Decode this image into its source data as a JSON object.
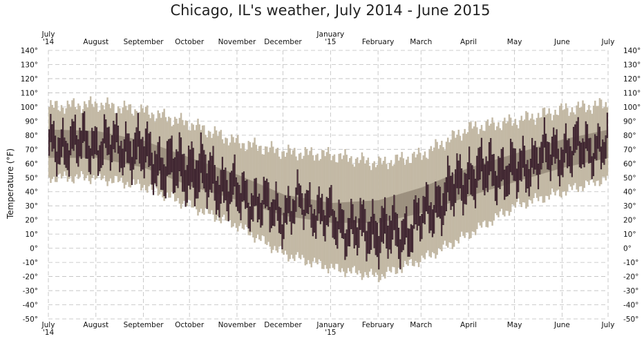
{
  "chart_data": {
    "type": "bar",
    "title": "Chicago, IL's weather, July 2014 - June 2015",
    "ylabel": "Temperature (°F)",
    "xlabel": "",
    "ylim": [
      -50,
      140
    ],
    "y_ticks": [
      140,
      130,
      120,
      110,
      100,
      90,
      80,
      70,
      60,
      50,
      40,
      30,
      20,
      10,
      0,
      -10,
      -20,
      -30,
      -40,
      -50
    ],
    "y_tick_suffix": "°",
    "grid": true,
    "x_ticks": [
      {
        "day": 0,
        "line1": "July",
        "line2": "'14"
      },
      {
        "day": 31,
        "line1": "August",
        "line2": ""
      },
      {
        "day": 62,
        "line1": "September",
        "line2": ""
      },
      {
        "day": 92,
        "line1": "October",
        "line2": ""
      },
      {
        "day": 123,
        "line1": "November",
        "line2": ""
      },
      {
        "day": 153,
        "line1": "December",
        "line2": ""
      },
      {
        "day": 184,
        "line1": "January",
        "line2": "'15"
      },
      {
        "day": 215,
        "line1": "February",
        "line2": ""
      },
      {
        "day": 243,
        "line1": "March",
        "line2": ""
      },
      {
        "day": 274,
        "line1": "April",
        "line2": ""
      },
      {
        "day": 304,
        "line1": "May",
        "line2": ""
      },
      {
        "day": 335,
        "line1": "June",
        "line2": ""
      },
      {
        "day": 365,
        "line1": "July",
        "line2": ""
      }
    ],
    "colors": {
      "record_band": "#c3b9a5",
      "normal_band": "#9c907f",
      "daily_bar": "#5b3444",
      "daily_bar_outline": "#2a1c22",
      "record_marker": "#7aaed3"
    },
    "series": [
      {
        "key": "record_range",
        "anchors": [
          {
            "day": 0,
            "low": 50,
            "high": 100
          },
          {
            "day": 31,
            "low": 50,
            "high": 102
          },
          {
            "day": 62,
            "low": 44,
            "high": 97
          },
          {
            "day": 92,
            "low": 30,
            "high": 88
          },
          {
            "day": 123,
            "low": 16,
            "high": 75
          },
          {
            "day": 153,
            "low": -4,
            "high": 68
          },
          {
            "day": 184,
            "low": -14,
            "high": 66
          },
          {
            "day": 215,
            "low": -20,
            "high": 60
          },
          {
            "day": 243,
            "low": -8,
            "high": 66
          },
          {
            "day": 274,
            "low": 10,
            "high": 85
          },
          {
            "day": 304,
            "low": 30,
            "high": 90
          },
          {
            "day": 335,
            "low": 40,
            "high": 98
          },
          {
            "day": 365,
            "low": 50,
            "high": 102
          }
        ]
      },
      {
        "key": "normal_range",
        "anchors": [
          {
            "day": 0,
            "low": 64,
            "high": 84
          },
          {
            "day": 31,
            "low": 64,
            "high": 83
          },
          {
            "day": 62,
            "low": 57,
            "high": 76
          },
          {
            "day": 92,
            "low": 44,
            "high": 64
          },
          {
            "day": 123,
            "low": 34,
            "high": 52
          },
          {
            "day": 153,
            "low": 23,
            "high": 38
          },
          {
            "day": 184,
            "low": 18,
            "high": 32
          },
          {
            "day": 215,
            "low": 18,
            "high": 34
          },
          {
            "day": 243,
            "low": 25,
            "high": 43
          },
          {
            "day": 274,
            "low": 37,
            "high": 57
          },
          {
            "day": 304,
            "low": 47,
            "high": 67
          },
          {
            "day": 335,
            "low": 57,
            "high": 77
          },
          {
            "day": 365,
            "low": 64,
            "high": 84
          }
        ]
      },
      {
        "key": "actual_range",
        "anchors": [
          {
            "day": 0,
            "low": 62,
            "high": 80
          },
          {
            "day": 15,
            "low": 64,
            "high": 84
          },
          {
            "day": 31,
            "low": 63,
            "high": 82
          },
          {
            "day": 45,
            "low": 63,
            "high": 82
          },
          {
            "day": 62,
            "low": 56,
            "high": 79
          },
          {
            "day": 75,
            "low": 45,
            "high": 68
          },
          {
            "day": 92,
            "low": 42,
            "high": 70
          },
          {
            "day": 108,
            "low": 35,
            "high": 60
          },
          {
            "day": 123,
            "low": 28,
            "high": 48
          },
          {
            "day": 138,
            "low": 22,
            "high": 40
          },
          {
            "day": 153,
            "low": 14,
            "high": 33
          },
          {
            "day": 165,
            "low": 25,
            "high": 40
          },
          {
            "day": 184,
            "low": 10,
            "high": 30
          },
          {
            "day": 200,
            "low": 2,
            "high": 22
          },
          {
            "day": 215,
            "low": 0,
            "high": 25
          },
          {
            "day": 230,
            "low": -2,
            "high": 20
          },
          {
            "day": 243,
            "low": 12,
            "high": 30
          },
          {
            "day": 260,
            "low": 26,
            "high": 50
          },
          {
            "day": 274,
            "low": 40,
            "high": 62
          },
          {
            "day": 290,
            "low": 44,
            "high": 66
          },
          {
            "day": 304,
            "low": 42,
            "high": 64
          },
          {
            "day": 320,
            "low": 55,
            "high": 74
          },
          {
            "day": 335,
            "low": 58,
            "high": 78
          },
          {
            "day": 350,
            "low": 62,
            "high": 80
          },
          {
            "day": 364,
            "low": 64,
            "high": 80
          }
        ]
      }
    ]
  }
}
